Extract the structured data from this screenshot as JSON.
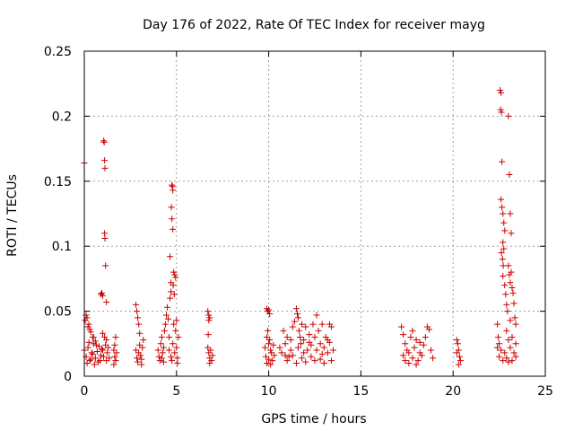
{
  "chart_data": {
    "type": "scatter",
    "title": "Day 176 of 2022, Rate Of TEC Index for receiver mayg",
    "xlabel": "GPS time / hours",
    "ylabel": "ROTI / TECUs",
    "xlim": [
      0,
      25
    ],
    "ylim": [
      0,
      0.25
    ],
    "x_ticks": [
      0,
      5,
      10,
      15,
      20,
      25
    ],
    "y_ticks": [
      0,
      0.05,
      0.1,
      0.15,
      0.2,
      0.25
    ],
    "x_tick_labels": [
      "0",
      "5",
      "10",
      "15",
      "20",
      "25"
    ],
    "y_tick_labels": [
      "0",
      "0.05",
      "0.1",
      "0.15",
      "0.2",
      "0.25"
    ],
    "grid": true,
    "marker": "+",
    "color": "#cc0000",
    "series": [
      {
        "points": [
          [
            0.0,
            0.164
          ],
          [
            0.05,
            0.043
          ],
          [
            0.1,
            0.047
          ],
          [
            0.15,
            0.045
          ],
          [
            0.2,
            0.038
          ],
          [
            0.25,
            0.04
          ],
          [
            0.3,
            0.036
          ],
          [
            0.35,
            0.034
          ],
          [
            0.45,
            0.03
          ],
          [
            0.6,
            0.027
          ],
          [
            0.0,
            0.02
          ],
          [
            0.1,
            0.015
          ],
          [
            0.2,
            0.022
          ],
          [
            0.3,
            0.012
          ],
          [
            0.4,
            0.018
          ],
          [
            0.5,
            0.025
          ],
          [
            0.6,
            0.014
          ],
          [
            0.7,
            0.019
          ],
          [
            0.8,
            0.023
          ],
          [
            0.9,
            0.016
          ],
          [
            0.15,
            0.01
          ],
          [
            0.35,
            0.013
          ],
          [
            0.55,
            0.009
          ],
          [
            0.75,
            0.011
          ],
          [
            0.95,
            0.021
          ],
          [
            0.25,
            0.026
          ],
          [
            0.45,
            0.017
          ],
          [
            0.65,
            0.024
          ],
          [
            0.85,
            0.012
          ],
          [
            0.5,
            0.03
          ],
          [
            0.9,
            0.063
          ],
          [
            0.95,
            0.064
          ],
          [
            1.0,
            0.062
          ],
          [
            1.05,
            0.181
          ],
          [
            1.08,
            0.18
          ],
          [
            1.1,
            0.166
          ],
          [
            1.12,
            0.16
          ],
          [
            1.1,
            0.11
          ],
          [
            1.12,
            0.106
          ],
          [
            1.15,
            0.085
          ],
          [
            1.2,
            0.057
          ],
          [
            1.0,
            0.02
          ],
          [
            1.05,
            0.015
          ],
          [
            1.1,
            0.03
          ],
          [
            1.15,
            0.024
          ],
          [
            1.2,
            0.012
          ],
          [
            1.25,
            0.018
          ],
          [
            1.3,
            0.022
          ],
          [
            1.35,
            0.014
          ],
          [
            1.0,
            0.033
          ],
          [
            1.2,
            0.028
          ],
          [
            1.6,
            0.02
          ],
          [
            1.65,
            0.015
          ],
          [
            1.7,
            0.012
          ],
          [
            1.75,
            0.018
          ],
          [
            1.65,
            0.024
          ],
          [
            1.7,
            0.03
          ],
          [
            1.6,
            0.009
          ],
          [
            2.8,
            0.055
          ],
          [
            2.85,
            0.05
          ],
          [
            2.9,
            0.045
          ],
          [
            2.95,
            0.04
          ],
          [
            2.8,
            0.02
          ],
          [
            2.85,
            0.014
          ],
          [
            2.9,
            0.011
          ],
          [
            2.95,
            0.018
          ],
          [
            3.0,
            0.024
          ],
          [
            3.05,
            0.016
          ],
          [
            3.1,
            0.013
          ],
          [
            3.15,
            0.022
          ],
          [
            3.2,
            0.028
          ],
          [
            3.0,
            0.033
          ],
          [
            3.1,
            0.009
          ],
          [
            4.0,
            0.02
          ],
          [
            4.05,
            0.015
          ],
          [
            4.1,
            0.012
          ],
          [
            4.15,
            0.025
          ],
          [
            4.2,
            0.03
          ],
          [
            4.25,
            0.018
          ],
          [
            4.3,
            0.022
          ],
          [
            4.35,
            0.035
          ],
          [
            4.4,
            0.04
          ],
          [
            4.45,
            0.047
          ],
          [
            4.5,
            0.053
          ],
          [
            4.55,
            0.044
          ],
          [
            4.3,
            0.011
          ],
          [
            4.2,
            0.014
          ],
          [
            4.6,
            0.03
          ],
          [
            4.65,
            0.06
          ],
          [
            4.7,
            0.065
          ],
          [
            4.75,
            0.147
          ],
          [
            4.78,
            0.146
          ],
          [
            4.8,
            0.143
          ],
          [
            4.72,
            0.13
          ],
          [
            4.75,
            0.121
          ],
          [
            4.8,
            0.113
          ],
          [
            4.65,
            0.092
          ],
          [
            4.85,
            0.08
          ],
          [
            4.9,
            0.078
          ],
          [
            4.95,
            0.076
          ],
          [
            4.82,
            0.07
          ],
          [
            4.88,
            0.063
          ],
          [
            4.7,
            0.072
          ],
          [
            4.6,
            0.02
          ],
          [
            4.7,
            0.015
          ],
          [
            4.8,
            0.025
          ],
          [
            4.9,
            0.018
          ],
          [
            5.0,
            0.022
          ],
          [
            5.05,
            0.014
          ],
          [
            5.1,
            0.03
          ],
          [
            4.95,
            0.035
          ],
          [
            5.0,
            0.043
          ],
          [
            4.85,
            0.04
          ],
          [
            4.75,
            0.012
          ],
          [
            5.05,
            0.01
          ],
          [
            6.7,
            0.05
          ],
          [
            6.75,
            0.047
          ],
          [
            6.8,
            0.045
          ],
          [
            6.75,
            0.043
          ],
          [
            6.72,
            0.032
          ],
          [
            6.7,
            0.022
          ],
          [
            6.75,
            0.018
          ],
          [
            6.8,
            0.014
          ],
          [
            6.85,
            0.02
          ],
          [
            6.9,
            0.012
          ],
          [
            6.95,
            0.016
          ],
          [
            6.8,
            0.01
          ],
          [
            9.9,
            0.052
          ],
          [
            9.95,
            0.05
          ],
          [
            10.0,
            0.051
          ],
          [
            10.05,
            0.048
          ],
          [
            9.9,
            0.03
          ],
          [
            9.95,
            0.035
          ],
          [
            10.0,
            0.025
          ],
          [
            10.05,
            0.028
          ],
          [
            10.1,
            0.02
          ],
          [
            9.8,
            0.022
          ],
          [
            9.85,
            0.015
          ],
          [
            10.15,
            0.018
          ],
          [
            10.2,
            0.012
          ],
          [
            10.25,
            0.024
          ],
          [
            10.3,
            0.016
          ],
          [
            9.9,
            0.01
          ],
          [
            10.0,
            0.013
          ],
          [
            10.1,
            0.009
          ],
          [
            10.6,
            0.022
          ],
          [
            10.7,
            0.018
          ],
          [
            10.8,
            0.035
          ],
          [
            10.9,
            0.025
          ],
          [
            11.0,
            0.03
          ],
          [
            11.1,
            0.015
          ],
          [
            11.2,
            0.02
          ],
          [
            11.3,
            0.038
          ],
          [
            11.4,
            0.042
          ],
          [
            11.5,
            0.052
          ],
          [
            11.55,
            0.048
          ],
          [
            11.6,
            0.045
          ],
          [
            11.65,
            0.035
          ],
          [
            11.7,
            0.03
          ],
          [
            11.75,
            0.025
          ],
          [
            11.8,
            0.04
          ],
          [
            11.9,
            0.028
          ],
          [
            12.0,
            0.038
          ],
          [
            12.1,
            0.02
          ],
          [
            12.2,
            0.032
          ],
          [
            12.3,
            0.024
          ],
          [
            12.4,
            0.04
          ],
          [
            12.5,
            0.03
          ],
          [
            12.6,
            0.047
          ],
          [
            12.7,
            0.035
          ],
          [
            12.8,
            0.025
          ],
          [
            12.9,
            0.04
          ],
          [
            13.0,
            0.022
          ],
          [
            13.1,
            0.03
          ],
          [
            13.2,
            0.018
          ],
          [
            13.3,
            0.026
          ],
          [
            13.4,
            0.038
          ],
          [
            13.5,
            0.02
          ],
          [
            13.3,
            0.04
          ],
          [
            11.0,
            0.012
          ],
          [
            11.5,
            0.01
          ],
          [
            12.0,
            0.011
          ],
          [
            12.5,
            0.012
          ],
          [
            13.0,
            0.01
          ],
          [
            13.4,
            0.012
          ],
          [
            11.3,
            0.016
          ],
          [
            11.8,
            0.014
          ],
          [
            12.3,
            0.015
          ],
          [
            12.8,
            0.013
          ],
          [
            11.2,
            0.028
          ],
          [
            12.2,
            0.026
          ],
          [
            13.2,
            0.028
          ],
          [
            11.6,
            0.022
          ],
          [
            12.6,
            0.02
          ],
          [
            10.9,
            0.016
          ],
          [
            11.9,
            0.018
          ],
          [
            12.9,
            0.017
          ],
          [
            17.2,
            0.038
          ],
          [
            17.3,
            0.032
          ],
          [
            17.4,
            0.025
          ],
          [
            17.5,
            0.02
          ],
          [
            17.6,
            0.018
          ],
          [
            17.7,
            0.03
          ],
          [
            17.8,
            0.014
          ],
          [
            17.9,
            0.022
          ],
          [
            18.0,
            0.028
          ],
          [
            18.1,
            0.012
          ],
          [
            18.2,
            0.018
          ],
          [
            18.3,
            0.016
          ],
          [
            18.4,
            0.024
          ],
          [
            18.6,
            0.038
          ],
          [
            18.7,
            0.036
          ],
          [
            18.8,
            0.02
          ],
          [
            18.9,
            0.014
          ],
          [
            18.5,
            0.03
          ],
          [
            17.4,
            0.012
          ],
          [
            17.6,
            0.01
          ],
          [
            18.0,
            0.009
          ],
          [
            17.8,
            0.035
          ],
          [
            18.2,
            0.026
          ],
          [
            17.3,
            0.016
          ],
          [
            20.2,
            0.028
          ],
          [
            20.25,
            0.025
          ],
          [
            20.3,
            0.02
          ],
          [
            20.35,
            0.015
          ],
          [
            20.4,
            0.012
          ],
          [
            20.3,
            0.009
          ],
          [
            20.2,
            0.018
          ],
          [
            22.4,
            0.04
          ],
          [
            22.45,
            0.03
          ],
          [
            22.5,
            0.025
          ],
          [
            22.55,
            0.22
          ],
          [
            22.6,
            0.218
          ],
          [
            22.58,
            0.205
          ],
          [
            22.62,
            0.203
          ],
          [
            22.65,
            0.165
          ],
          [
            22.6,
            0.136
          ],
          [
            22.65,
            0.13
          ],
          [
            22.7,
            0.125
          ],
          [
            22.75,
            0.118
          ],
          [
            22.8,
            0.112
          ],
          [
            22.7,
            0.103
          ],
          [
            22.75,
            0.098
          ],
          [
            22.62,
            0.095
          ],
          [
            22.68,
            0.09
          ],
          [
            22.72,
            0.085
          ],
          [
            22.7,
            0.077
          ],
          [
            22.8,
            0.07
          ],
          [
            22.85,
            0.063
          ],
          [
            22.9,
            0.055
          ],
          [
            22.95,
            0.05
          ],
          [
            23.0,
            0.2
          ],
          [
            23.05,
            0.155
          ],
          [
            23.1,
            0.125
          ],
          [
            23.15,
            0.11
          ],
          [
            23.0,
            0.085
          ],
          [
            23.05,
            0.078
          ],
          [
            23.1,
            0.072
          ],
          [
            23.15,
            0.08
          ],
          [
            23.2,
            0.068
          ],
          [
            23.25,
            0.064
          ],
          [
            23.3,
            0.056
          ],
          [
            23.35,
            0.045
          ],
          [
            23.4,
            0.04
          ],
          [
            22.9,
            0.035
          ],
          [
            23.0,
            0.028
          ],
          [
            23.1,
            0.022
          ],
          [
            23.2,
            0.03
          ],
          [
            23.3,
            0.018
          ],
          [
            23.4,
            0.025
          ],
          [
            22.5,
            0.015
          ],
          [
            22.6,
            0.02
          ],
          [
            22.7,
            0.012
          ],
          [
            22.8,
            0.018
          ],
          [
            22.9,
            0.014
          ],
          [
            23.0,
            0.011
          ],
          [
            23.2,
            0.012
          ],
          [
            23.4,
            0.015
          ],
          [
            22.4,
            0.022
          ],
          [
            23.1,
            0.043
          ]
        ]
      }
    ]
  }
}
